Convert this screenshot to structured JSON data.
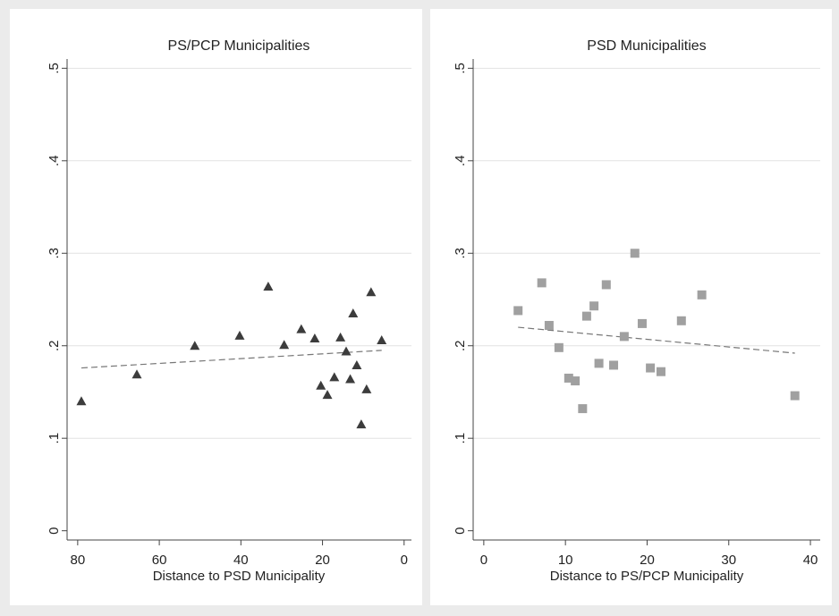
{
  "chart_data": [
    {
      "type": "scatter",
      "title": "PS/PCP Municipalities",
      "x_label": "Distance to PSD Municipality",
      "marker": "triangle",
      "color": "#3c3c3c",
      "grid": true,
      "x": [
        79.1,
        65.5,
        51.3,
        40.3,
        33.3,
        29.4,
        25.2,
        21.9,
        20.4,
        18.8,
        17.1,
        15.6,
        14.2,
        13.2,
        12.5,
        11.6,
        10.5,
        9.2,
        8.1,
        5.5
      ],
      "values": [
        0.14,
        0.169,
        0.2,
        0.211,
        0.264,
        0.201,
        0.218,
        0.208,
        0.157,
        0.147,
        0.166,
        0.209,
        0.194,
        0.164,
        0.235,
        0.179,
        0.115,
        0.153,
        0.258,
        0.206
      ],
      "fit": {
        "x": [
          79.1,
          5.5
        ],
        "values": [
          0.176,
          0.195
        ]
      },
      "xlim": [
        82.6,
        -1.8
      ],
      "xticks": [
        80,
        60,
        40,
        20,
        0
      ],
      "ylim": [
        -0.01,
        0.51
      ],
      "yticks": [
        0,
        {
          "value": 0.1,
          "label": ".1"
        },
        {
          "value": 0.2,
          "label": ".2"
        },
        {
          "value": 0.3,
          "label": ".3"
        },
        {
          "value": 0.4,
          "label": ".4"
        },
        {
          "value": 0.5,
          "label": ".5"
        }
      ]
    },
    {
      "type": "scatter",
      "title": "PSD Municipalities",
      "x_label": "Distance to PS/PCP Municipality",
      "marker": "square",
      "color": "#a0a0a0",
      "grid": true,
      "x": [
        4.2,
        7.1,
        8.0,
        9.2,
        10.4,
        11.2,
        12.1,
        12.6,
        13.5,
        14.1,
        15.0,
        15.9,
        17.2,
        18.5,
        19.4,
        20.4,
        21.7,
        24.2,
        26.7,
        38.1
      ],
      "values": [
        0.238,
        0.268,
        0.222,
        0.198,
        0.165,
        0.162,
        0.132,
        0.232,
        0.243,
        0.181,
        0.266,
        0.179,
        0.21,
        0.3,
        0.224,
        0.176,
        0.172,
        0.227,
        0.255,
        0.146
      ],
      "fit": {
        "x": [
          4.2,
          38.1
        ],
        "values": [
          0.22,
          0.192
        ]
      },
      "xlim": [
        -1.3,
        41.2
      ],
      "xticks": [
        0,
        10,
        20,
        30,
        40
      ],
      "ylim": [
        -0.01,
        0.51
      ],
      "yticks": [
        0,
        {
          "value": 0.1,
          "label": ".1"
        },
        {
          "value": 0.2,
          "label": ".2"
        },
        {
          "value": 0.3,
          "label": ".3"
        },
        {
          "value": 0.4,
          "label": ".4"
        },
        {
          "value": 0.5,
          "label": ".5"
        }
      ]
    }
  ]
}
